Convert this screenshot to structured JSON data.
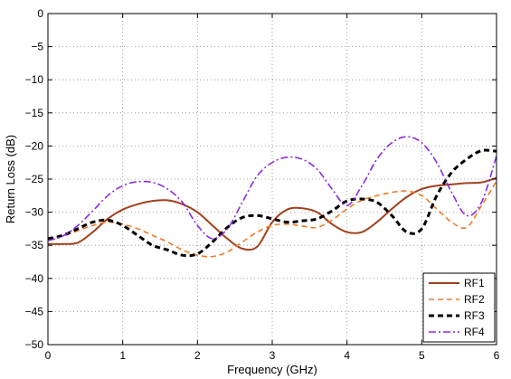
{
  "chart_data": {
    "type": "line",
    "xlabel": "Frequency (GHz)",
    "ylabel": "Return Loss (dB)",
    "xlim": [
      0,
      6
    ],
    "ylim": [
      -50,
      0
    ],
    "xticks": [
      0,
      1,
      2,
      3,
      4,
      5,
      6
    ],
    "yticks": [
      0,
      -5,
      -10,
      -15,
      -20,
      -25,
      -30,
      -35,
      -40,
      -45,
      -50
    ],
    "grid": true,
    "legend_position": "bottom-right",
    "series": [
      {
        "name": "RF1",
        "color": "#a0411d",
        "style": "solid",
        "x": [
          0,
          0.2,
          0.4,
          0.6,
          0.8,
          1.0,
          1.2,
          1.4,
          1.6,
          1.8,
          2.0,
          2.2,
          2.4,
          2.6,
          2.8,
          3.0,
          3.2,
          3.4,
          3.6,
          3.8,
          4.0,
          4.2,
          4.4,
          4.6,
          4.8,
          5.0,
          5.2,
          5.4,
          5.6,
          5.8,
          6.0
        ],
        "y": [
          -34.8,
          -34.8,
          -34.6,
          -33.0,
          -31.0,
          -29.6,
          -28.8,
          -28.3,
          -28.2,
          -28.8,
          -30.0,
          -32.0,
          -34.0,
          -35.5,
          -35.2,
          -31.5,
          -29.6,
          -29.4,
          -30.0,
          -31.8,
          -33.0,
          -33.0,
          -31.5,
          -29.5,
          -27.7,
          -26.5,
          -26.0,
          -25.8,
          -25.6,
          -25.5,
          -24.8
        ]
      },
      {
        "name": "RF2",
        "color": "#f07a26",
        "style": "dashed",
        "x": [
          0,
          0.2,
          0.4,
          0.6,
          0.8,
          1.0,
          1.2,
          1.4,
          1.6,
          1.8,
          2.0,
          2.2,
          2.4,
          2.6,
          2.8,
          3.0,
          3.2,
          3.4,
          3.6,
          3.8,
          4.0,
          4.2,
          4.4,
          4.6,
          4.8,
          5.0,
          5.2,
          5.4,
          5.6,
          5.8,
          6.0
        ],
        "y": [
          -34.0,
          -33.6,
          -32.8,
          -32.0,
          -31.5,
          -31.8,
          -32.5,
          -33.5,
          -34.5,
          -35.7,
          -36.5,
          -36.7,
          -36.0,
          -34.5,
          -33.0,
          -32.0,
          -31.8,
          -32.1,
          -32.3,
          -31.2,
          -29.5,
          -28.2,
          -27.5,
          -27.0,
          -26.8,
          -27.5,
          -29.5,
          -31.5,
          -32.3,
          -29.0,
          -25.3
        ]
      },
      {
        "name": "RF3",
        "color": "#000000",
        "style": "dashed",
        "x": [
          0,
          0.2,
          0.4,
          0.6,
          0.8,
          1.0,
          1.2,
          1.4,
          1.6,
          1.8,
          2.0,
          2.2,
          2.4,
          2.6,
          2.8,
          3.0,
          3.2,
          3.4,
          3.6,
          3.8,
          4.0,
          4.2,
          4.4,
          4.6,
          4.8,
          5.0,
          5.2,
          5.4,
          5.6,
          5.8,
          6.0
        ],
        "y": [
          -34.0,
          -33.5,
          -32.5,
          -31.5,
          -31.2,
          -32.0,
          -33.5,
          -35.0,
          -35.7,
          -36.5,
          -36.3,
          -34.5,
          -32.3,
          -30.8,
          -30.5,
          -31.0,
          -31.5,
          -31.3,
          -31.0,
          -29.8,
          -28.3,
          -28.0,
          -28.5,
          -30.5,
          -33.0,
          -32.5,
          -27.5,
          -24.0,
          -22.0,
          -20.7,
          -20.8
        ]
      },
      {
        "name": "RF4",
        "color": "#8a2be2",
        "style": "dashdot",
        "x": [
          0,
          0.2,
          0.4,
          0.6,
          0.8,
          1.0,
          1.2,
          1.4,
          1.6,
          1.8,
          2.0,
          2.2,
          2.4,
          2.6,
          2.8,
          3.0,
          3.2,
          3.4,
          3.6,
          3.8,
          4.0,
          4.2,
          4.4,
          4.6,
          4.8,
          5.0,
          5.2,
          5.4,
          5.6,
          5.8,
          6.0
        ],
        "y": [
          -34.3,
          -33.6,
          -32.0,
          -29.8,
          -27.5,
          -26.0,
          -25.4,
          -25.5,
          -26.5,
          -28.5,
          -32.0,
          -34.0,
          -32.5,
          -28.5,
          -24.5,
          -22.5,
          -21.7,
          -22.0,
          -23.5,
          -26.5,
          -29.0,
          -26.0,
          -22.0,
          -19.5,
          -18.6,
          -19.5,
          -22.5,
          -27.0,
          -30.5,
          -28.5,
          -21.5
        ]
      }
    ]
  }
}
